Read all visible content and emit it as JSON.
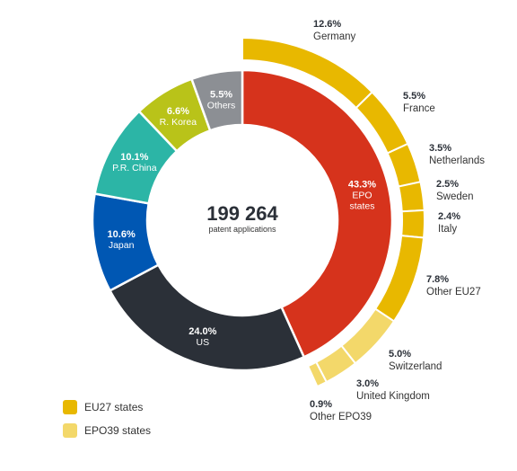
{
  "chart_data": {
    "type": "donut",
    "center": {
      "value": "199 264",
      "label": "patent applications"
    },
    "segments": [
      {
        "pct": "43.3%",
        "name": "EPO states",
        "value": 43.3,
        "color": "#d6331c"
      },
      {
        "pct": "24.0%",
        "name": "US",
        "value": 24.0,
        "color": "#2b3038"
      },
      {
        "pct": "10.6%",
        "name": "Japan",
        "value": 10.6,
        "color": "#0057b3"
      },
      {
        "pct": "10.1%",
        "name": "P.R. China",
        "value": 10.1,
        "color": "#2cb5a6"
      },
      {
        "pct": "6.6%",
        "name": "R. Korea",
        "value": 6.6,
        "color": "#b9c319"
      },
      {
        "pct": "5.5%",
        "name": "Others",
        "value": 5.5,
        "color": "#8c8f94"
      }
    ],
    "breakdown": [
      {
        "pct": "12.6%",
        "name": "Germany",
        "value": 12.6,
        "group": "EU27 states"
      },
      {
        "pct": "5.5%",
        "name": "France",
        "value": 5.5,
        "group": "EU27 states"
      },
      {
        "pct": "3.5%",
        "name": "Netherlands",
        "value": 3.5,
        "group": "EU27 states"
      },
      {
        "pct": "2.5%",
        "name": "Sweden",
        "value": 2.5,
        "group": "EU27 states"
      },
      {
        "pct": "2.4%",
        "name": "Italy",
        "value": 2.4,
        "group": "EU27 states"
      },
      {
        "pct": "7.8%",
        "name": "Other EU27",
        "value": 7.8,
        "group": "EU27 states"
      },
      {
        "pct": "5.0%",
        "name": "Switzerland",
        "value": 5.0,
        "group": "EPO39 states"
      },
      {
        "pct": "3.0%",
        "name": "United Kingdom",
        "value": 3.0,
        "group": "EPO39 states"
      },
      {
        "pct": "0.9%",
        "name": "Other EPO39",
        "value": 0.9,
        "group": "EPO39 states"
      }
    ],
    "legend": [
      {
        "label": "EU27 states",
        "color": "#e8b800"
      },
      {
        "label": "EPO39 states",
        "color": "#f3d86a"
      }
    ]
  }
}
